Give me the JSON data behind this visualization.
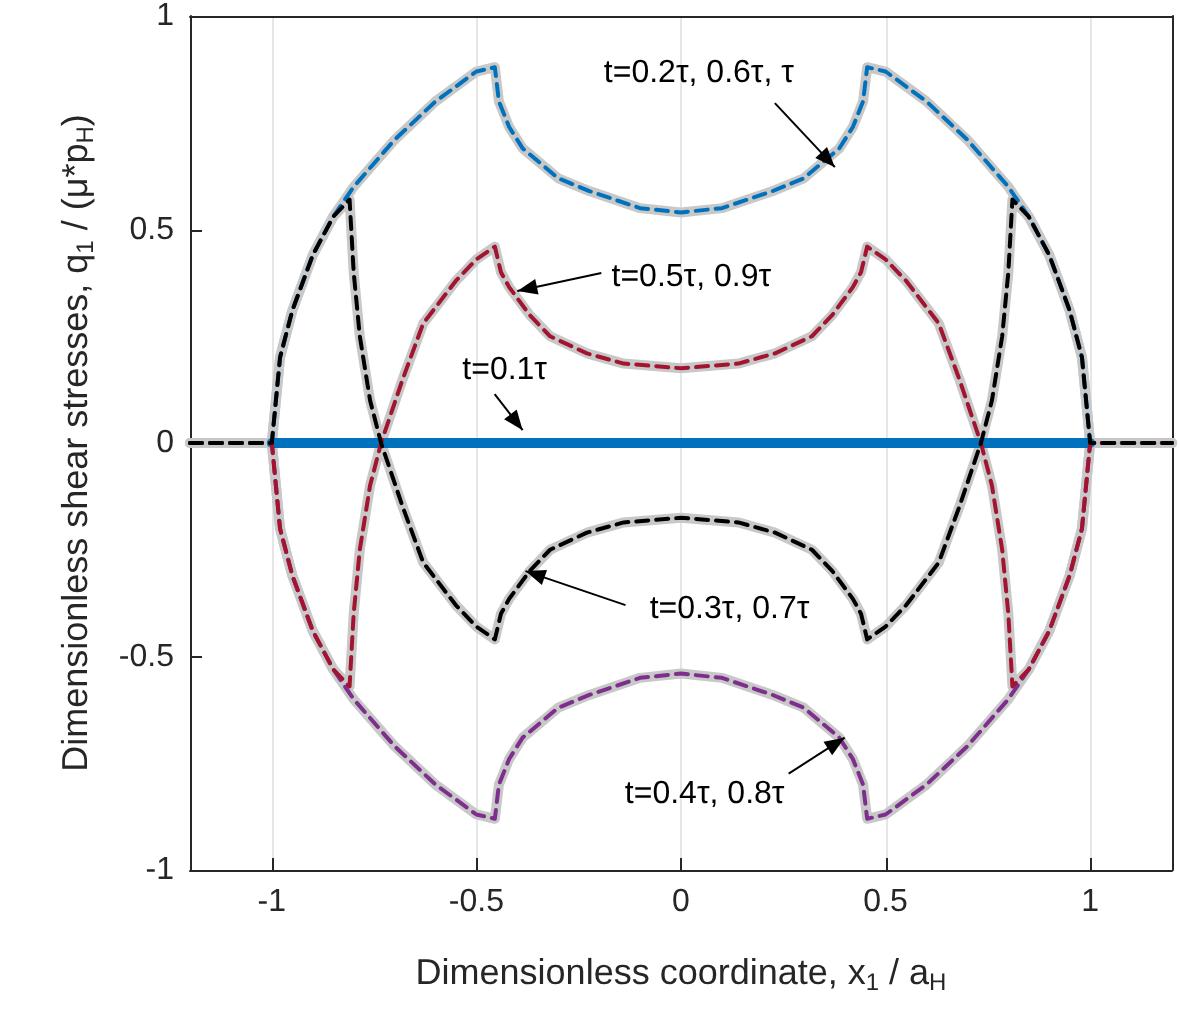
{
  "chart_data": {
    "type": "line",
    "xlabel": "Dimensionless coordinate, x$_{1}$ / a$_{H}$",
    "ylabel": "Dimensionless shear stresses, q$_{1}$ / (μ*p$_{H}$)",
    "xlim": [
      -1.2,
      1.2
    ],
    "xticks": [
      -1,
      -0.5,
      0,
      0.5,
      1
    ],
    "ylim": [
      -1,
      1
    ],
    "yticks": [
      -1,
      -0.5,
      0,
      0.5,
      1
    ],
    "grid": "x",
    "marker": "none",
    "series": [
      {
        "color": "#c8c8c8",
        "line_style": "solid",
        "x": [
          -1.2,
          -1,
          -0.98,
          -0.95,
          -0.9,
          -0.85,
          -0.8,
          -0.7,
          -0.6,
          -0.5,
          -0.455,
          -0.445,
          -0.42,
          -0.387,
          -0.3,
          -0.224,
          -0.1,
          0,
          0.1,
          0.224,
          0.3,
          0.387,
          0.42,
          0.445,
          0.455,
          0.5,
          0.6,
          0.7,
          0.8,
          0.85,
          0.9,
          0.95,
          0.98,
          1,
          1.2
        ],
        "values": [
          0,
          0,
          0.2,
          0.31,
          0.44,
          0.53,
          0.6,
          0.71,
          0.8,
          0.87,
          0.88,
          0.8,
          0.74,
          0.69,
          0.62,
          0.59,
          0.55,
          0.54,
          0.55,
          0.59,
          0.62,
          0.69,
          0.74,
          0.8,
          0.88,
          0.87,
          0.8,
          0.71,
          0.6,
          0.53,
          0.44,
          0.31,
          0.2,
          0,
          0
        ]
      },
      {
        "color": "#c8c8c8",
        "line_style": "solid",
        "x": [
          -1.2,
          -1,
          -0.98,
          -0.95,
          -0.9,
          -0.85,
          -0.81,
          -0.8,
          -0.785,
          -0.76,
          -0.733,
          -0.68,
          -0.63,
          -0.55,
          -0.5,
          -0.455,
          -0.44,
          -0.42,
          -0.37,
          -0.32,
          -0.23,
          -0.14,
          0,
          0.14,
          0.23,
          0.32,
          0.37,
          0.42,
          0.44,
          0.455,
          0.5,
          0.55,
          0.63,
          0.68,
          0.733,
          0.76,
          0.785,
          0.8,
          0.81,
          0.85,
          0.9,
          0.95,
          0.98,
          1,
          1.2
        ],
        "values": [
          0,
          0,
          -0.2,
          -0.31,
          -0.44,
          -0.53,
          -0.57,
          -0.4,
          -0.25,
          -0.1,
          0,
          0.15,
          0.28,
          0.38,
          0.43,
          0.46,
          0.4,
          0.365,
          0.3,
          0.25,
          0.21,
          0.186,
          0.175,
          0.186,
          0.21,
          0.25,
          0.3,
          0.365,
          0.4,
          0.46,
          0.43,
          0.38,
          0.28,
          0.15,
          0,
          -0.1,
          -0.25,
          -0.4,
          -0.57,
          -0.53,
          -0.44,
          -0.31,
          -0.2,
          0,
          0
        ]
      },
      {
        "color": "#c8c8c8",
        "line_style": "solid",
        "x": [
          -1.2,
          -1,
          -0.98,
          -0.95,
          -0.9,
          -0.85,
          -0.81,
          -0.8,
          -0.785,
          -0.76,
          -0.733,
          -0.68,
          -0.63,
          -0.55,
          -0.5,
          -0.455,
          -0.44,
          -0.42,
          -0.37,
          -0.32,
          -0.23,
          -0.14,
          0,
          0.14,
          0.23,
          0.32,
          0.37,
          0.42,
          0.44,
          0.455,
          0.5,
          0.55,
          0.63,
          0.68,
          0.733,
          0.76,
          0.785,
          0.8,
          0.81,
          0.85,
          0.9,
          0.95,
          0.98,
          1,
          1.2
        ],
        "values": [
          0,
          0,
          0.2,
          0.31,
          0.44,
          0.53,
          0.57,
          0.4,
          0.25,
          0.1,
          0,
          -0.15,
          -0.28,
          -0.38,
          -0.43,
          -0.46,
          -0.4,
          -0.365,
          -0.3,
          -0.25,
          -0.21,
          -0.186,
          -0.175,
          -0.186,
          -0.21,
          -0.25,
          -0.3,
          -0.365,
          -0.4,
          -0.46,
          -0.43,
          -0.38,
          -0.28,
          -0.15,
          0,
          0.1,
          0.25,
          0.4,
          0.57,
          0.53,
          0.44,
          0.31,
          0.2,
          0,
          0
        ]
      },
      {
        "color": "#c8c8c8",
        "line_style": "solid",
        "x": [
          -1.2,
          -1,
          -0.98,
          -0.95,
          -0.9,
          -0.85,
          -0.8,
          -0.7,
          -0.6,
          -0.5,
          -0.455,
          -0.445,
          -0.42,
          -0.387,
          -0.3,
          -0.224,
          -0.1,
          0,
          0.1,
          0.224,
          0.3,
          0.387,
          0.42,
          0.445,
          0.455,
          0.5,
          0.6,
          0.7,
          0.8,
          0.85,
          0.9,
          0.95,
          0.98,
          1,
          1.2
        ],
        "values": [
          0,
          0,
          -0.2,
          -0.31,
          -0.44,
          -0.53,
          -0.6,
          -0.71,
          -0.8,
          -0.87,
          -0.88,
          -0.8,
          -0.74,
          -0.69,
          -0.62,
          -0.59,
          -0.55,
          -0.54,
          -0.55,
          -0.59,
          -0.62,
          -0.69,
          -0.74,
          -0.8,
          -0.88,
          -0.87,
          -0.8,
          -0.71,
          -0.6,
          -0.53,
          -0.44,
          -0.31,
          -0.2,
          0,
          0
        ]
      },
      {
        "color": "#0072bd",
        "line_style": "solid",
        "x": [
          -1,
          1
        ],
        "values": [
          0,
          0
        ]
      },
      {
        "color": "#0072bd",
        "line_style": "dashed",
        "x": [
          -1.2,
          -1,
          -0.98,
          -0.95,
          -0.9,
          -0.85,
          -0.8,
          -0.7,
          -0.6,
          -0.5,
          -0.455,
          -0.445,
          -0.42,
          -0.387,
          -0.3,
          -0.224,
          -0.1,
          0,
          0.1,
          0.224,
          0.3,
          0.387,
          0.42,
          0.445,
          0.455,
          0.5,
          0.6,
          0.7,
          0.8,
          0.85,
          0.9,
          0.95,
          0.98,
          1,
          1.2
        ],
        "values": [
          0,
          0,
          0.2,
          0.31,
          0.44,
          0.53,
          0.6,
          0.71,
          0.8,
          0.87,
          0.88,
          0.8,
          0.74,
          0.69,
          0.62,
          0.59,
          0.55,
          0.54,
          0.55,
          0.59,
          0.62,
          0.69,
          0.74,
          0.8,
          0.88,
          0.87,
          0.8,
          0.71,
          0.6,
          0.53,
          0.44,
          0.31,
          0.2,
          0,
          0
        ]
      },
      {
        "color": "#7e2f8e",
        "line_style": "dashed",
        "x": [
          -1.2,
          -1,
          -0.98,
          -0.95,
          -0.9,
          -0.85,
          -0.8,
          -0.7,
          -0.6,
          -0.5,
          -0.455,
          -0.445,
          -0.42,
          -0.387,
          -0.3,
          -0.224,
          -0.1,
          0,
          0.1,
          0.224,
          0.3,
          0.387,
          0.42,
          0.445,
          0.455,
          0.5,
          0.6,
          0.7,
          0.8,
          0.85,
          0.9,
          0.95,
          0.98,
          1,
          1.2
        ],
        "values": [
          0,
          0,
          -0.2,
          -0.31,
          -0.44,
          -0.53,
          -0.6,
          -0.71,
          -0.8,
          -0.87,
          -0.88,
          -0.8,
          -0.74,
          -0.69,
          -0.62,
          -0.59,
          -0.55,
          -0.54,
          -0.55,
          -0.59,
          -0.62,
          -0.69,
          -0.74,
          -0.8,
          -0.88,
          -0.87,
          -0.8,
          -0.71,
          -0.6,
          -0.53,
          -0.44,
          -0.31,
          -0.2,
          0,
          0
        ]
      },
      {
        "color": "#a2142f",
        "line_style": "dashed",
        "x": [
          -1.2,
          -1,
          -0.98,
          -0.95,
          -0.9,
          -0.85,
          -0.81,
          -0.8,
          -0.785,
          -0.76,
          -0.733,
          -0.68,
          -0.63,
          -0.55,
          -0.5,
          -0.455,
          -0.44,
          -0.42,
          -0.37,
          -0.32,
          -0.23,
          -0.14,
          0,
          0.14,
          0.23,
          0.32,
          0.37,
          0.42,
          0.44,
          0.455,
          0.5,
          0.55,
          0.63,
          0.68,
          0.733,
          0.76,
          0.785,
          0.8,
          0.81,
          0.85,
          0.9,
          0.95,
          0.98,
          1,
          1.2
        ],
        "values": [
          0,
          0,
          -0.2,
          -0.31,
          -0.44,
          -0.53,
          -0.57,
          -0.4,
          -0.25,
          -0.1,
          0,
          0.15,
          0.28,
          0.38,
          0.43,
          0.46,
          0.4,
          0.365,
          0.3,
          0.25,
          0.21,
          0.186,
          0.175,
          0.186,
          0.21,
          0.25,
          0.3,
          0.365,
          0.4,
          0.46,
          0.43,
          0.38,
          0.28,
          0.15,
          0,
          -0.1,
          -0.25,
          -0.4,
          -0.57,
          -0.53,
          -0.44,
          -0.31,
          -0.2,
          0,
          0
        ]
      },
      {
        "color": "#000000",
        "line_style": "dashed",
        "x": [
          -1.2,
          -1,
          -0.98,
          -0.95,
          -0.9,
          -0.85,
          -0.81,
          -0.8,
          -0.785,
          -0.76,
          -0.733,
          -0.68,
          -0.63,
          -0.55,
          -0.5,
          -0.455,
          -0.44,
          -0.42,
          -0.37,
          -0.32,
          -0.23,
          -0.14,
          0,
          0.14,
          0.23,
          0.32,
          0.37,
          0.42,
          0.44,
          0.455,
          0.5,
          0.55,
          0.63,
          0.68,
          0.733,
          0.76,
          0.785,
          0.8,
          0.81,
          0.85,
          0.9,
          0.95,
          0.98,
          1,
          1.2
        ],
        "values": [
          0,
          0,
          0.2,
          0.31,
          0.44,
          0.53,
          0.57,
          0.4,
          0.25,
          0.1,
          0,
          -0.15,
          -0.28,
          -0.38,
          -0.43,
          -0.46,
          -0.4,
          -0.365,
          -0.3,
          -0.25,
          -0.21,
          -0.186,
          -0.175,
          -0.186,
          -0.21,
          -0.25,
          -0.3,
          -0.365,
          -0.4,
          -0.46,
          -0.43,
          -0.38,
          -0.28,
          -0.15,
          0,
          0.1,
          0.25,
          0.4,
          0.57,
          0.53,
          0.44,
          0.31,
          0.2,
          0,
          0
        ]
      }
    ],
    "annotations": [
      {
        "text": "t=0.2τ, 0.6τ, τ",
        "x": 0.376,
        "y": 0.646
      },
      {
        "text": "t=0.5τ, 0.9τ",
        "x": -0.4,
        "y": 0.356
      },
      {
        "text": "t=0.1τ",
        "x": -0.387,
        "y": 0.03
      },
      {
        "text": "t=0.3τ, 0.7τ",
        "x": -0.38,
        "y": -0.3
      },
      {
        "text": "t=0.4τ, 0.8τ",
        "x": 0.4,
        "y": -0.69
      }
    ]
  }
}
